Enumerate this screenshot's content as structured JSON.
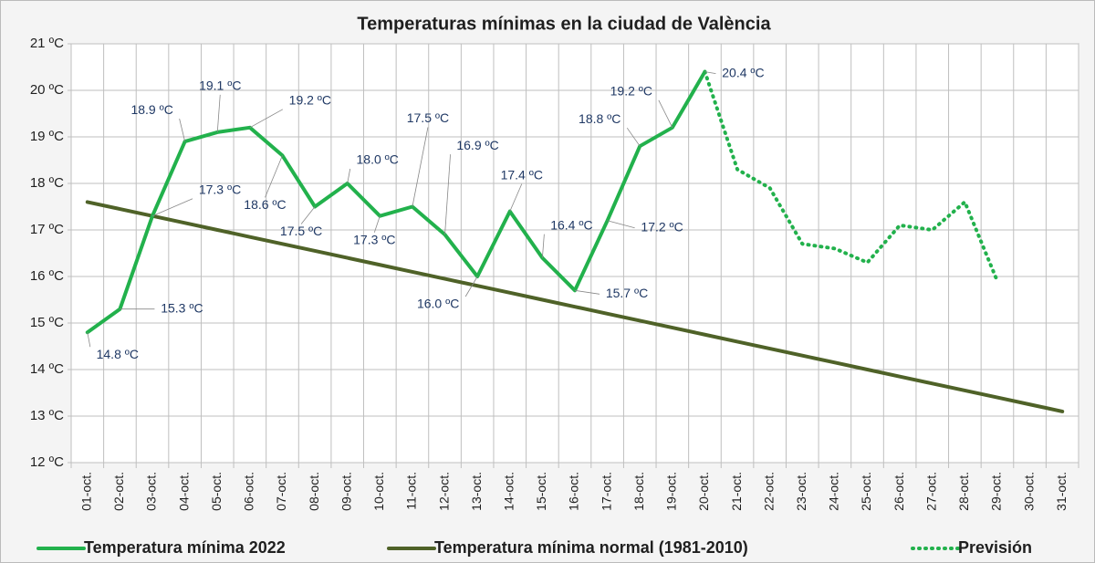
{
  "chart_data": {
    "type": "line",
    "title": "Temperaturas mínimas en la ciudad de València",
    "categories": [
      "01-oct.",
      "02-oct.",
      "03-oct.",
      "04-oct.",
      "05-oct.",
      "06-oct.",
      "07-oct.",
      "08-oct.",
      "09-oct.",
      "10-oct.",
      "11-oct.",
      "12-oct.",
      "13-oct.",
      "14-oct.",
      "15-oct.",
      "16-oct.",
      "17-oct.",
      "18-oct.",
      "19-oct.",
      "20-oct.",
      "21-oct.",
      "22-oct.",
      "23-oct.",
      "24-oct.",
      "25-oct.",
      "26-oct.",
      "27-oct.",
      "28-oct.",
      "29-oct.",
      "30-oct.",
      "31-oct."
    ],
    "series": [
      {
        "name": "Temperatura mínima 2022",
        "color": "#22b14c",
        "style": "solid",
        "values": [
          14.8,
          15.3,
          17.3,
          18.9,
          19.1,
          19.2,
          18.6,
          17.5,
          18.0,
          17.3,
          17.5,
          16.9,
          16.0,
          17.4,
          16.4,
          15.7,
          17.2,
          18.8,
          19.2,
          20.4,
          null,
          null,
          null,
          null,
          null,
          null,
          null,
          null,
          null,
          null,
          null
        ],
        "value_labels": [
          "14.8 ºC",
          "15.3 ºC",
          "17.3 ºC",
          "18.9 ºC",
          "19.1 ºC",
          "19.2 ºC",
          "18.6 ºC",
          "17.5 ºC",
          "18.0 ºC",
          "17.3 ºC",
          "17.5 ºC",
          "16.9 ºC",
          "16.0 ºC",
          "17.4 ºC",
          "16.4 ºC",
          "15.7 ºC",
          "17.2 ºC",
          "18.8 ºC",
          "19.2 ºC",
          "20.4 ºC",
          null,
          null,
          null,
          null,
          null,
          null,
          null,
          null,
          null,
          null,
          null
        ]
      },
      {
        "name": "Temperatura mínima normal (1981-2010)",
        "color": "#4f6228",
        "style": "solid",
        "values": [
          17.6,
          17.45,
          17.3,
          17.15,
          17.0,
          16.85,
          16.7,
          16.55,
          16.4,
          16.25,
          16.1,
          15.95,
          15.8,
          15.65,
          15.5,
          15.35,
          15.2,
          15.05,
          14.9,
          14.75,
          14.6,
          14.45,
          14.3,
          14.15,
          14.0,
          13.85,
          13.7,
          13.55,
          13.4,
          13.25,
          13.1
        ]
      },
      {
        "name": "Previsión",
        "color": "#22b14c",
        "style": "dotted",
        "values": [
          null,
          null,
          null,
          null,
          null,
          null,
          null,
          null,
          null,
          null,
          null,
          null,
          null,
          null,
          null,
          null,
          null,
          null,
          null,
          20.4,
          18.3,
          17.9,
          16.7,
          16.6,
          16.3,
          17.1,
          17.0,
          17.6,
          15.9,
          null,
          null
        ]
      }
    ],
    "ylim": [
      12,
      21
    ],
    "yticks": [
      {
        "value": 12,
        "label": "12 ºC"
      },
      {
        "value": 13,
        "label": "13 ºC"
      },
      {
        "value": 14,
        "label": "14 ºC"
      },
      {
        "value": 15,
        "label": "15 ºC"
      },
      {
        "value": 16,
        "label": "16 ºC"
      },
      {
        "value": 17,
        "label": "17 ºC"
      },
      {
        "value": 18,
        "label": "18 ºC"
      },
      {
        "value": 19,
        "label": "19 ºC"
      },
      {
        "value": 20,
        "label": "20 ºC"
      },
      {
        "value": 21,
        "label": "21 ºC"
      }
    ],
    "grid": true,
    "legend": "bottom"
  }
}
